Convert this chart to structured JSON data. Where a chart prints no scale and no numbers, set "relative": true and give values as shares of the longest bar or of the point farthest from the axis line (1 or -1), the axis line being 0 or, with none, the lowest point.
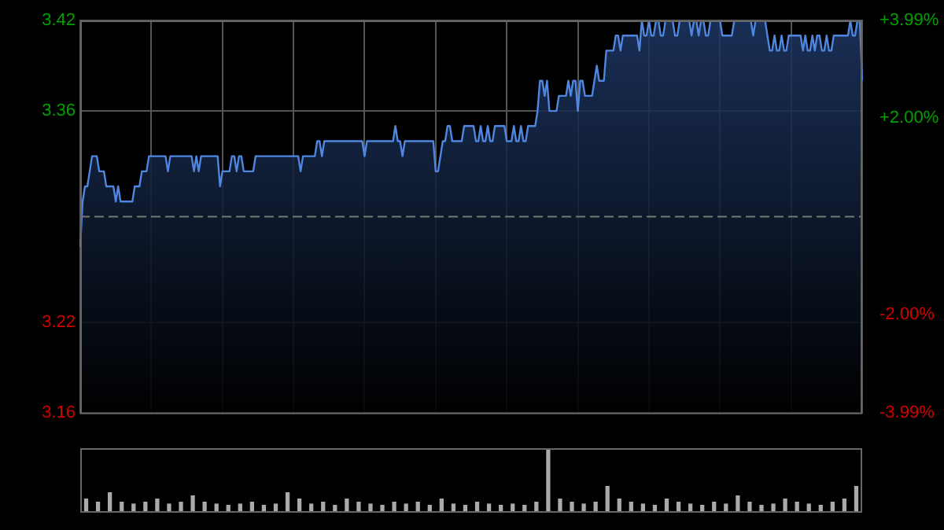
{
  "chart_data": [
    {
      "type": "area",
      "categories": [
        null,
        null,
        null,
        null,
        null,
        null,
        null,
        null,
        null,
        null,
        null,
        null,
        null,
        null,
        null,
        null,
        null,
        null,
        null,
        null,
        null,
        null,
        null,
        null,
        null,
        null,
        null,
        null,
        null,
        null,
        null,
        null,
        null,
        null,
        null,
        null,
        null,
        null,
        null,
        null,
        null,
        null,
        null,
        null,
        null,
        null,
        null,
        null,
        null,
        null,
        null,
        null,
        null,
        null,
        null,
        null,
        null,
        null,
        null,
        null,
        null,
        null,
        null,
        null,
        null,
        null,
        null,
        null,
        null,
        null,
        null,
        null,
        null,
        null,
        null,
        null,
        null,
        null,
        null,
        null,
        null,
        null,
        null,
        null,
        null,
        null,
        null,
        null,
        null,
        null,
        null,
        null,
        null,
        null,
        null,
        null,
        null,
        null,
        null,
        null,
        null,
        null,
        null,
        null,
        null,
        null,
        null,
        null,
        null,
        null,
        null,
        null,
        null,
        null,
        null,
        null,
        null,
        null,
        null,
        null,
        null,
        null,
        null,
        null,
        null,
        null,
        null,
        null,
        null,
        null,
        null,
        null,
        null,
        null,
        null,
        null,
        null,
        null,
        null,
        null,
        null,
        null,
        null,
        null,
        null,
        null,
        null,
        null,
        null,
        null,
        null,
        null,
        null,
        null,
        null,
        null,
        null,
        null,
        null,
        null,
        null,
        null,
        null,
        null,
        null,
        null,
        null,
        null,
        null,
        null,
        null,
        null,
        null,
        null,
        null,
        null,
        null,
        null,
        null,
        null,
        null,
        null,
        null,
        null,
        null,
        null,
        null,
        null,
        null,
        null,
        null,
        null,
        null,
        null,
        null,
        null,
        null,
        null,
        null,
        null,
        null,
        null,
        null,
        null,
        null,
        null,
        null,
        null,
        null,
        null,
        null,
        null,
        null,
        null,
        null,
        null,
        null,
        null,
        null,
        null,
        null,
        null,
        null,
        null,
        null,
        null,
        null,
        null,
        null,
        null,
        null,
        null,
        null,
        null,
        null,
        null,
        null,
        null,
        null,
        null,
        null,
        null,
        null,
        null,
        null,
        null,
        null,
        null,
        null,
        null,
        null,
        null,
        null,
        null,
        null,
        null,
        null,
        null,
        null,
        null,
        null,
        null,
        null,
        null,
        null,
        null,
        null,
        null,
        null,
        null,
        null,
        null,
        null,
        null,
        null,
        null,
        null,
        null,
        null,
        null,
        null,
        null,
        null,
        null,
        null,
        null,
        null,
        null,
        null,
        null,
        null,
        null,
        null,
        null,
        null,
        null,
        null,
        null,
        null,
        null,
        null,
        null,
        null,
        null,
        null,
        null,
        null,
        null,
        null,
        null,
        null,
        null,
        null,
        null,
        null,
        null,
        null,
        null,
        null,
        null,
        null,
        null,
        null,
        null,
        null,
        null,
        null,
        null,
        null,
        null,
        null
      ],
      "series": [
        {
          "color": "#4f86e0",
          "values": [
            3.27,
            3.3,
            3.31,
            3.31,
            3.32,
            3.33,
            3.33,
            3.33,
            3.32,
            3.32,
            3.32,
            3.31,
            3.31,
            3.31,
            3.31,
            3.3,
            3.31,
            3.3,
            3.3,
            3.3,
            3.3,
            3.3,
            3.3,
            3.31,
            3.31,
            3.31,
            3.32,
            3.32,
            3.32,
            3.33,
            3.33,
            3.33,
            3.33,
            3.33,
            3.33,
            3.33,
            3.33,
            3.32,
            3.33,
            3.33,
            3.33,
            3.33,
            3.33,
            3.33,
            3.33,
            3.33,
            3.33,
            3.33,
            3.32,
            3.33,
            3.32,
            3.33,
            3.33,
            3.33,
            3.33,
            3.33,
            3.33,
            3.33,
            3.33,
            3.31,
            3.32,
            3.32,
            3.32,
            3.32,
            3.33,
            3.33,
            3.32,
            3.33,
            3.33,
            3.32,
            3.32,
            3.32,
            3.32,
            3.32,
            3.33,
            3.33,
            3.33,
            3.33,
            3.33,
            3.33,
            3.33,
            3.33,
            3.33,
            3.33,
            3.33,
            3.33,
            3.33,
            3.33,
            3.33,
            3.33,
            3.33,
            3.33,
            3.33,
            3.32,
            3.33,
            3.33,
            3.33,
            3.33,
            3.33,
            3.33,
            3.34,
            3.34,
            3.33,
            3.34,
            3.34,
            3.34,
            3.34,
            3.34,
            3.34,
            3.34,
            3.34,
            3.34,
            3.34,
            3.34,
            3.34,
            3.34,
            3.34,
            3.34,
            3.34,
            3.34,
            3.33,
            3.34,
            3.34,
            3.34,
            3.34,
            3.34,
            3.34,
            3.34,
            3.34,
            3.34,
            3.34,
            3.34,
            3.34,
            3.35,
            3.34,
            3.34,
            3.33,
            3.34,
            3.34,
            3.34,
            3.34,
            3.34,
            3.34,
            3.34,
            3.34,
            3.34,
            3.34,
            3.34,
            3.34,
            3.34,
            3.32,
            3.32,
            3.33,
            3.34,
            3.34,
            3.35,
            3.35,
            3.34,
            3.34,
            3.34,
            3.34,
            3.34,
            3.35,
            3.35,
            3.35,
            3.35,
            3.35,
            3.34,
            3.34,
            3.35,
            3.34,
            3.34,
            3.35,
            3.34,
            3.34,
            3.35,
            3.35,
            3.35,
            3.35,
            3.35,
            3.34,
            3.34,
            3.34,
            3.35,
            3.34,
            3.34,
            3.35,
            3.34,
            3.34,
            3.35,
            3.35,
            3.35,
            3.35,
            3.36,
            3.38,
            3.38,
            3.37,
            3.38,
            3.36,
            3.36,
            3.36,
            3.36,
            3.37,
            3.37,
            3.37,
            3.37,
            3.38,
            3.37,
            3.38,
            3.38,
            3.36,
            3.38,
            3.38,
            3.37,
            3.37,
            3.37,
            3.37,
            3.38,
            3.39,
            3.38,
            3.38,
            3.38,
            3.4,
            3.4,
            3.4,
            3.4,
            3.41,
            3.41,
            3.4,
            3.41,
            3.41,
            3.41,
            3.41,
            3.41,
            3.41,
            3.41,
            3.4,
            3.42,
            3.41,
            3.41,
            3.42,
            3.41,
            3.41,
            3.42,
            3.42,
            3.41,
            3.41,
            3.42,
            3.42,
            3.42,
            3.42,
            3.41,
            3.41,
            3.42,
            3.42,
            3.42,
            3.42,
            3.42,
            3.41,
            3.42,
            3.42,
            3.41,
            3.42,
            3.42,
            3.41,
            3.41,
            3.42,
            3.42,
            3.42,
            3.42,
            3.42,
            3.41,
            3.41,
            3.41,
            3.41,
            3.41,
            3.42,
            3.42,
            3.42,
            3.42,
            3.42,
            3.42,
            3.42,
            3.42,
            3.41,
            3.42,
            3.42,
            3.42,
            3.42,
            3.42,
            3.41,
            3.4,
            3.4,
            3.41,
            3.4,
            3.4,
            3.41,
            3.4,
            3.4,
            3.41,
            3.41,
            3.41,
            3.41,
            3.41,
            3.41,
            3.4,
            3.41,
            3.4,
            3.4,
            3.41,
            3.4,
            3.41,
            3.41,
            3.4,
            3.4,
            3.41,
            3.4,
            3.4,
            3.41,
            3.41,
            3.41,
            3.41,
            3.41,
            3.41,
            3.41,
            3.42,
            3.41,
            3.41,
            3.42,
            3.42,
            3.38
          ]
        }
      ],
      "ylim": [
        3.16,
        3.42
      ],
      "yticks": [
        3.42,
        3.36,
        3.22,
        3.16
      ],
      "y2lim": [
        -3.99,
        3.99
      ],
      "y2ticks": [
        {
          "value": 3.99,
          "label": "+3.99%"
        },
        {
          "value": 2,
          "label": "+2.00%"
        },
        {
          "value": -2,
          "label": "-2.00%"
        },
        {
          "value": -3.99,
          "label": "-3.99%"
        }
      ],
      "ref_lines": [
        {
          "axis": "y",
          "value": 3.29,
          "color": "#777777",
          "line_style": "dashed"
        }
      ],
      "grid": true,
      "legend": false,
      "marker": "none"
    },
    {
      "type": "bar",
      "relative": true,
      "legend": false,
      "categories": [
        null,
        null,
        null,
        null,
        null,
        null,
        null,
        null,
        null,
        null,
        null,
        null,
        null,
        null,
        null,
        null,
        null,
        null,
        null,
        null,
        null,
        null,
        null,
        null,
        null,
        null,
        null,
        null,
        null,
        null,
        null,
        null,
        null,
        null,
        null,
        null,
        null,
        null,
        null,
        null,
        null,
        null,
        null,
        null,
        null,
        null,
        null,
        null,
        null,
        null,
        null,
        null,
        null,
        null,
        null,
        null,
        null,
        null,
        null,
        null,
        null,
        null,
        null,
        null,
        null,
        null
      ],
      "series": [
        {
          "color": "#aaaaaa",
          "values": [
            0.2,
            0.15,
            0.3,
            0.15,
            0.12,
            0.15,
            0.2,
            0.12,
            0.15,
            0.25,
            0.15,
            0.12,
            0.1,
            0.12,
            0.15,
            0.1,
            0.12,
            0.3,
            0.2,
            0.12,
            0.15,
            0.1,
            0.2,
            0.15,
            0.12,
            0.1,
            0.15,
            0.12,
            0.15,
            0.1,
            0.2,
            0.12,
            0.1,
            0.15,
            0.12,
            0.1,
            0.12,
            0.1,
            0.15,
            1,
            0.2,
            0.15,
            0.12,
            0.15,
            0.4,
            0.2,
            0.15,
            0.12,
            0.1,
            0.2,
            0.15,
            0.12,
            0.1,
            0.15,
            0.12,
            0.25,
            0.15,
            0.1,
            0.12,
            0.2,
            0.15,
            0.12,
            0.1,
            0.15,
            0.2,
            0.4
          ]
        }
      ]
    }
  ]
}
